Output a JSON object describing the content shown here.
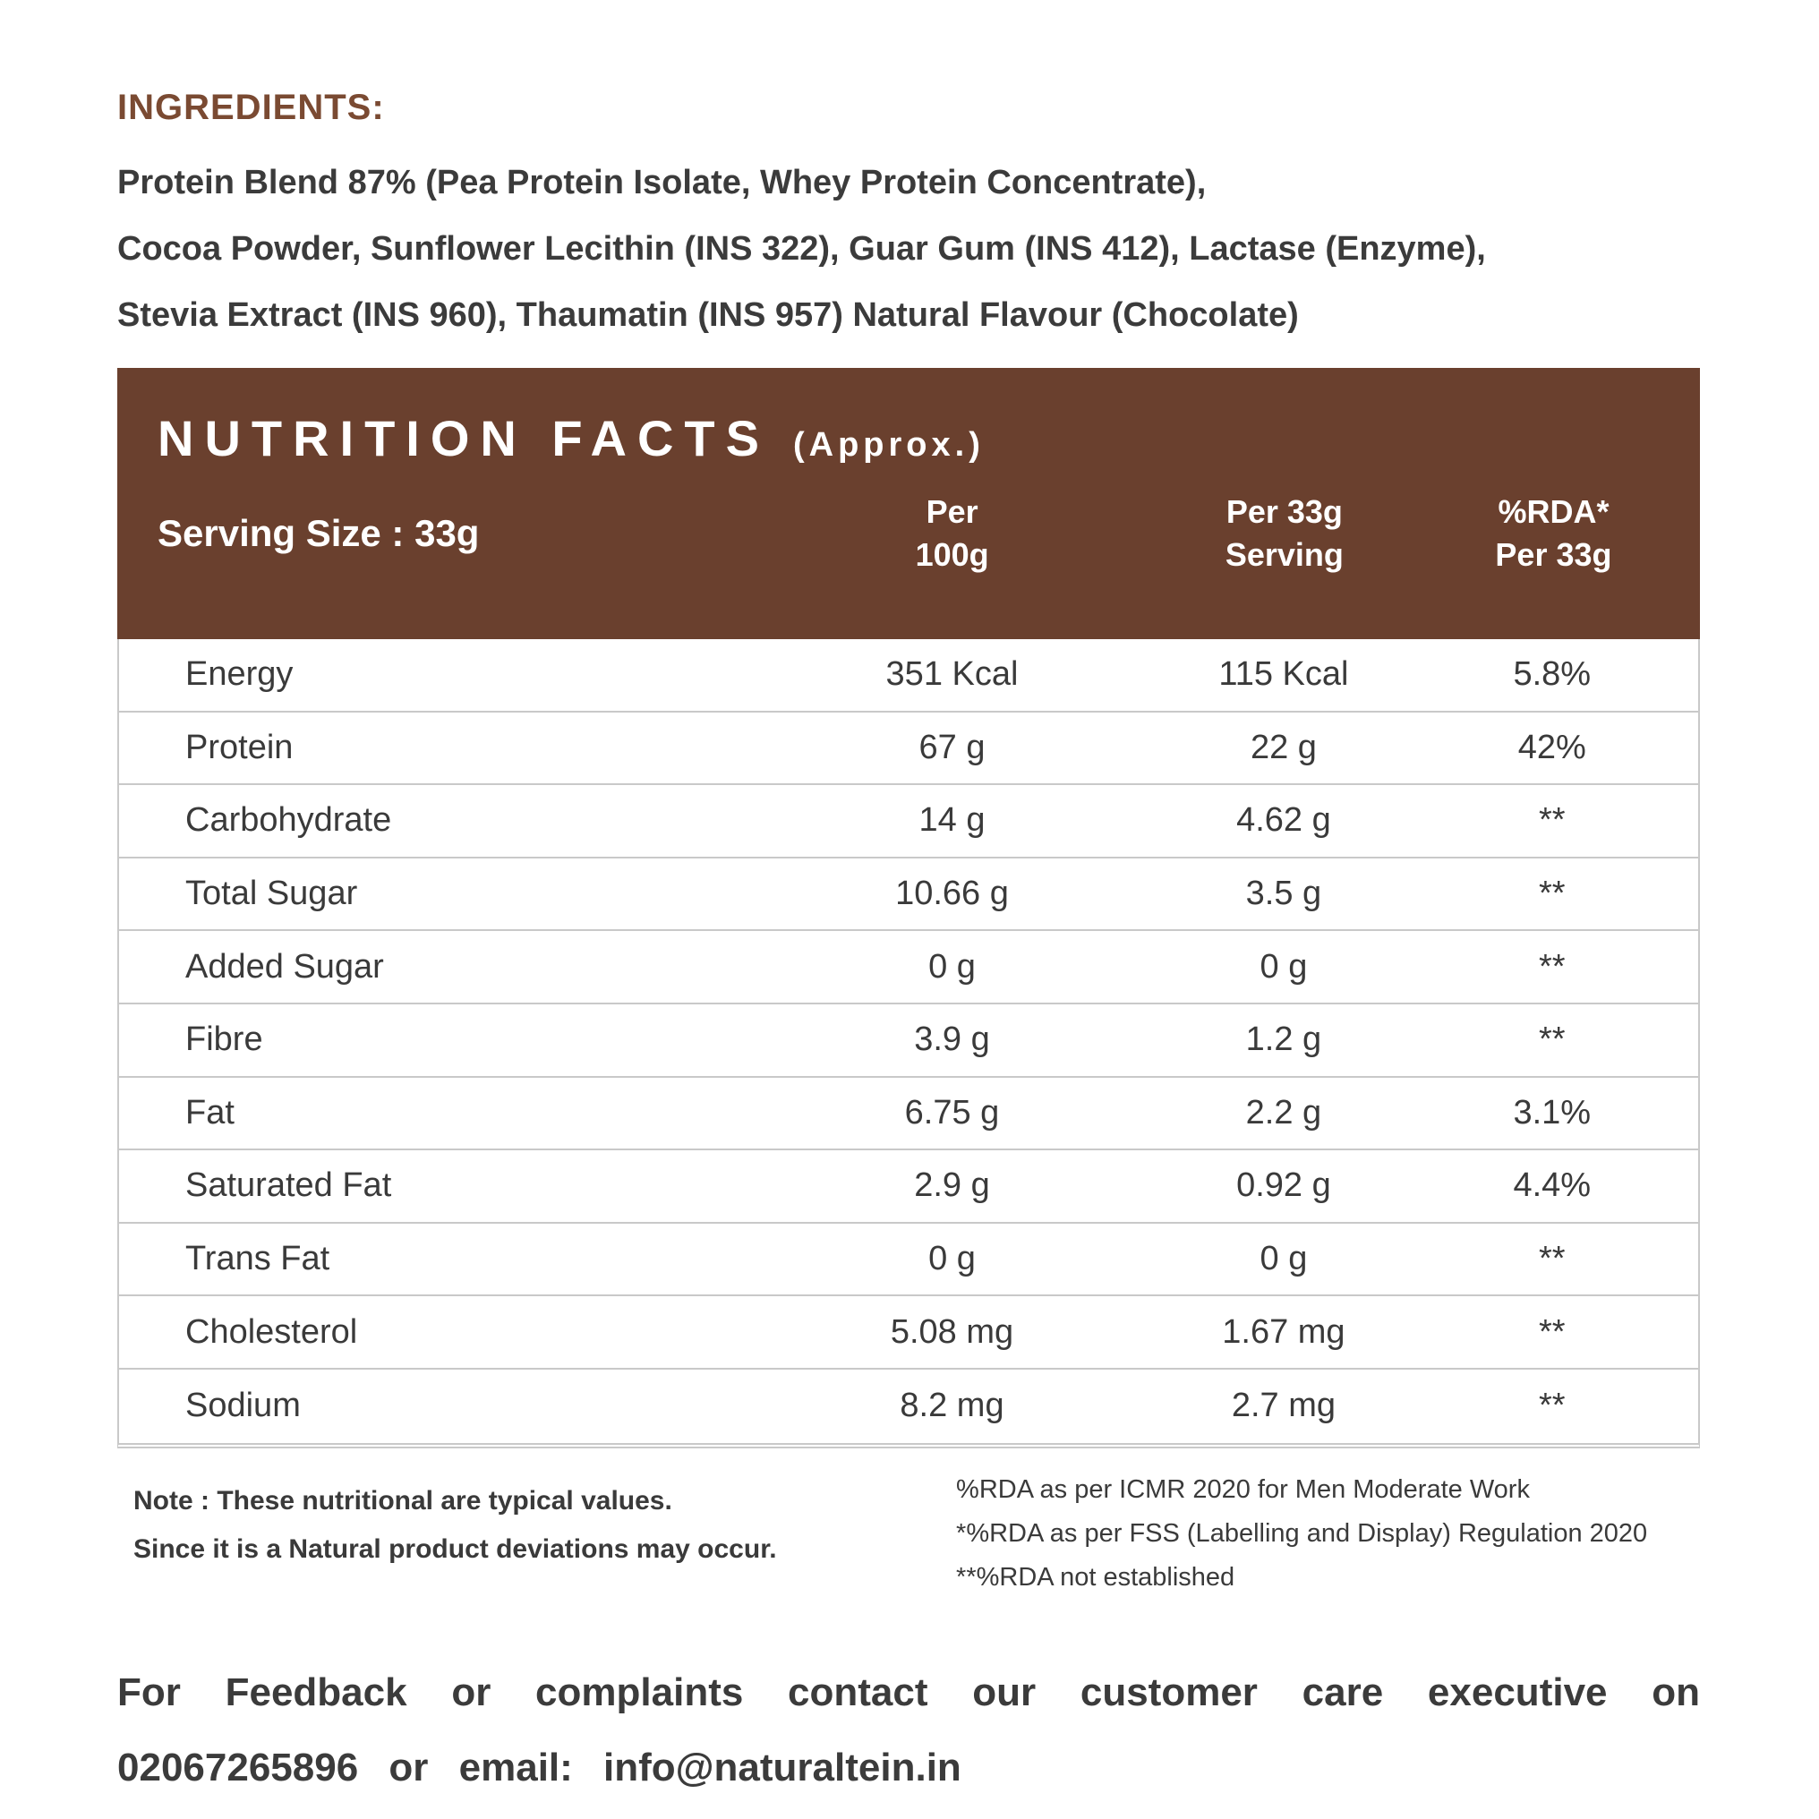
{
  "colors": {
    "panel_brown": "#6A402E",
    "heading_brown": "#7A4A32",
    "text_dark": "#3A3A3A",
    "separator_gray": "#C9C9C9"
  },
  "ingredients": {
    "heading": "INGREDIENTS:",
    "lines": [
      "Protein Blend 87% (Pea Protein Isolate, Whey Protein Concentrate),",
      "Cocoa Powder, Sunflower Lecithin (INS 322), Guar Gum (INS 412), Lactase (Enzyme),",
      "Stevia Extract (INS 960), Thaumatin (INS 957) Natural Flavour (Chocolate)"
    ]
  },
  "nutrition": {
    "title": "NUTRITION FACTS",
    "title_suffix": "(Approx.)",
    "serving_size": "Serving Size : 33g",
    "columns": [
      {
        "line1": "Per",
        "line2": "100g"
      },
      {
        "line1": "Per 33g",
        "line2": "Serving"
      },
      {
        "line1": "%RDA*",
        "line2": "Per 33g"
      }
    ],
    "rows": [
      {
        "label": "Energy",
        "per_100g": "351 Kcal",
        "per_33g": "115 Kcal",
        "rda": "5.8%"
      },
      {
        "label": "Protein",
        "per_100g": "67 g",
        "per_33g": "22 g",
        "rda": "42%"
      },
      {
        "label": "Carbohydrate",
        "per_100g": "14 g",
        "per_33g": "4.62 g",
        "rda": "**"
      },
      {
        "label": "Total Sugar",
        "per_100g": "10.66 g",
        "per_33g": "3.5 g",
        "rda": "**"
      },
      {
        "label": "Added Sugar",
        "per_100g": "0 g",
        "per_33g": "0 g",
        "rda": "**"
      },
      {
        "label": "Fibre",
        "per_100g": "3.9 g",
        "per_33g": "1.2 g",
        "rda": "**"
      },
      {
        "label": "Fat",
        "per_100g": "6.75 g",
        "per_33g": "2.2 g",
        "rda": "3.1%"
      },
      {
        "label": "Saturated Fat",
        "per_100g": "2.9 g",
        "per_33g": "0.92 g",
        "rda": "4.4%"
      },
      {
        "label": "Trans Fat",
        "per_100g": "0 g",
        "per_33g": "0 g",
        "rda": "**"
      },
      {
        "label": "Cholesterol",
        "per_100g": "5.08 mg",
        "per_33g": "1.67 mg",
        "rda": "**"
      },
      {
        "label": "Sodium",
        "per_100g": "8.2 mg",
        "per_33g": "2.7 mg",
        "rda": "**"
      }
    ]
  },
  "notes": {
    "left": [
      "Note : These nutritional are typical values.",
      "Since it is a Natural product deviations may occur."
    ],
    "right": [
      "%RDA as per ICMR 2020 for Men Moderate Work",
      "*%RDA as per FSS (Labelling and Display) Regulation 2020",
      "**%RDA not established"
    ]
  },
  "footer": {
    "line1": "For Feedback or complaints contact our customer care executive on",
    "line2": "02067265896 or email: info@naturaltein.in"
  }
}
